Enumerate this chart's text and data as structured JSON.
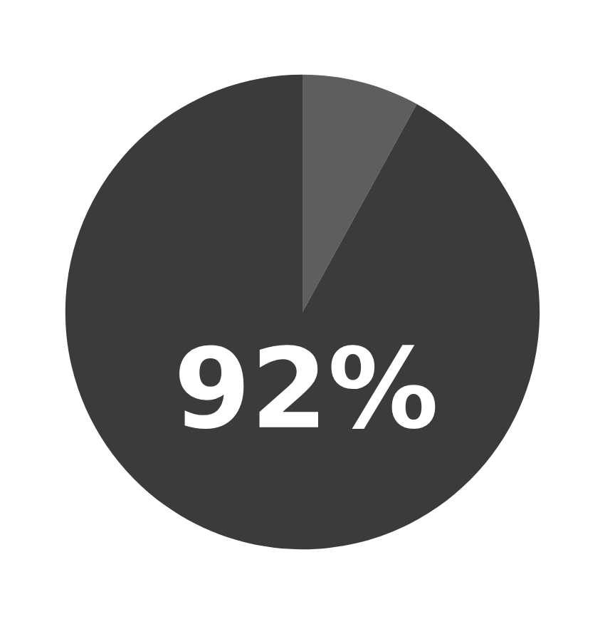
{
  "chart_data": {
    "type": "pie",
    "categories": [
      null,
      null
    ],
    "values": [
      8,
      92
    ],
    "colors": [
      "#5e5e5e",
      "#3b3b3b"
    ],
    "value_labels": [
      null,
      "92%"
    ]
  }
}
